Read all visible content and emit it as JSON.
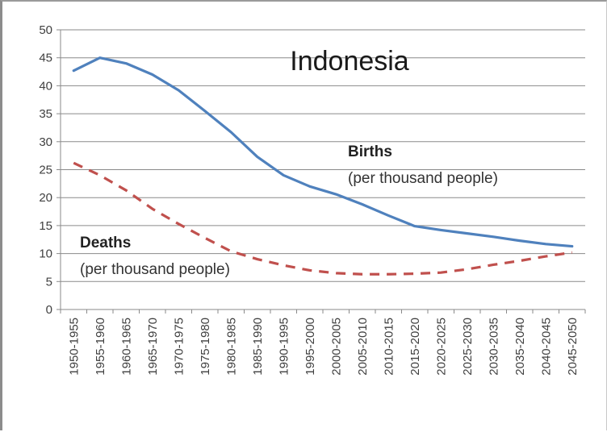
{
  "chart_data": {
    "type": "line",
    "title": "Indonesia",
    "xlabel": "",
    "ylabel": "",
    "ylim": [
      0,
      50
    ],
    "yticks": [
      0,
      5,
      10,
      15,
      20,
      25,
      30,
      35,
      40,
      45,
      50
    ],
    "grid": true,
    "legend": "none",
    "categories": [
      "1950-1955",
      "1955-1960",
      "1960-1965",
      "1965-1970",
      "1970-1975",
      "1975-1980",
      "1980-1985",
      "1985-1990",
      "1990-1995",
      "1995-2000",
      "2000-2005",
      "2005-2010",
      "2010-2015",
      "2015-2020",
      "2020-2025",
      "2025-2030",
      "2030-2035",
      "2035-2040",
      "2040-2045",
      "2045-2050"
    ],
    "series": [
      {
        "name": "Births",
        "style": "solid",
        "color": "#4f81bd",
        "values": [
          42.7,
          45.0,
          44.0,
          42.0,
          39.2,
          35.5,
          31.7,
          27.3,
          24.0,
          22.0,
          20.6,
          18.8,
          16.8,
          14.9,
          14.2,
          13.6,
          13.0,
          12.3,
          11.7,
          11.3
        ]
      },
      {
        "name": "Deaths",
        "style": "dashed",
        "color": "#c0504d",
        "values": [
          26.2,
          24.0,
          21.3,
          18.0,
          15.3,
          12.8,
          10.4,
          9.0,
          7.9,
          7.0,
          6.5,
          6.3,
          6.3,
          6.4,
          6.6,
          7.2,
          8.0,
          8.7,
          9.5,
          10.2
        ]
      }
    ],
    "annotations": {
      "births_label": "Births",
      "births_unit": "(per thousand people)",
      "deaths_label": "Deaths",
      "deaths_unit": "(per thousand people)"
    }
  }
}
